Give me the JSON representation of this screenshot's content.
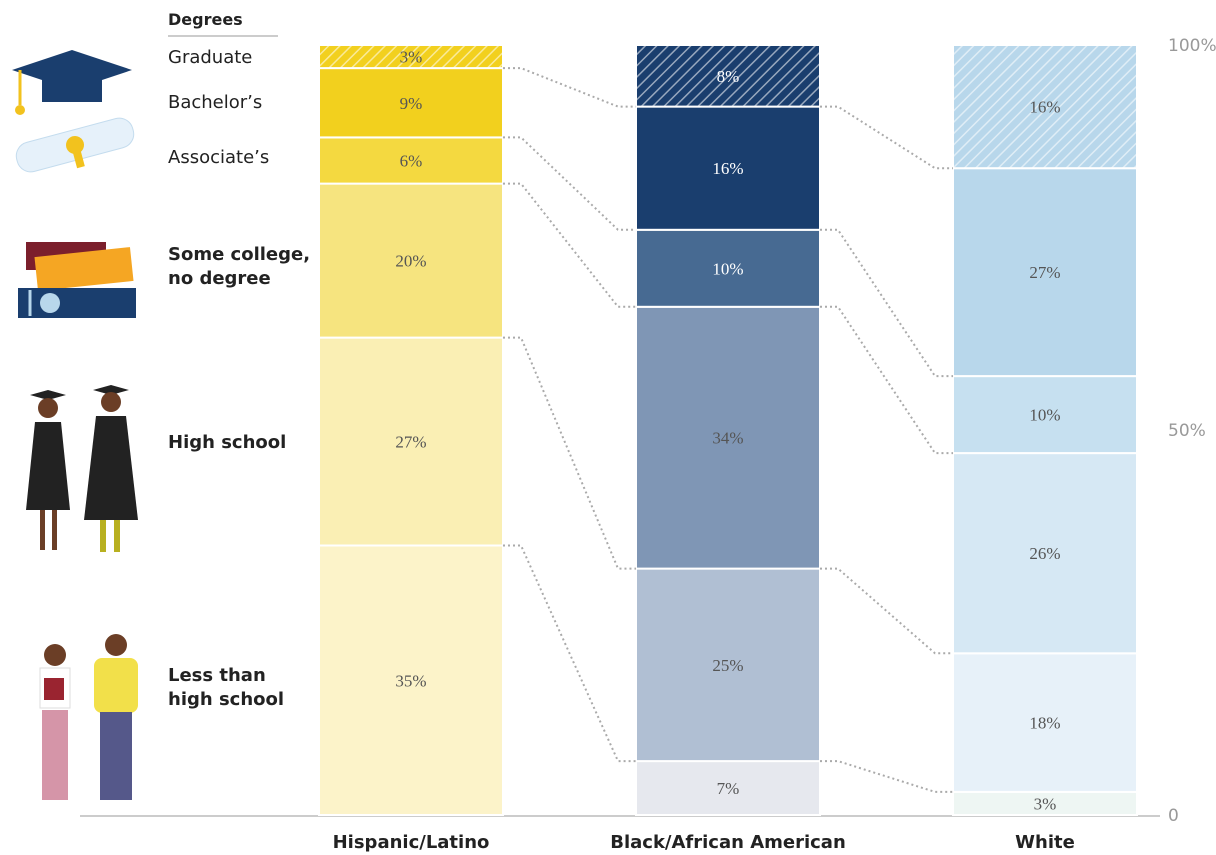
{
  "chart_data": {
    "type": "stacked-bar",
    "legend_title": "Degrees",
    "categories": [
      "Hispanic/Latino",
      "Black/African American",
      "White"
    ],
    "ylim": [
      0,
      100
    ],
    "yticks": [
      0,
      {
        "value": 50,
        "label": "50%"
      },
      {
        "value": 100,
        "label": "100%"
      }
    ],
    "series": [
      {
        "name": "Less than high school",
        "colors": [
          "#fcf3c9",
          "#e6e8ee",
          "#eef6f3"
        ],
        "values": [
          35,
          7,
          3
        ],
        "value_labels": [
          "35%",
          "7%",
          "3%"
        ]
      },
      {
        "name": "High school",
        "colors": [
          "#faefb4",
          "#b0bfd3",
          "#e7f1f9"
        ],
        "values": [
          27,
          25,
          18
        ],
        "value_labels": [
          "27%",
          "25%",
          "18%"
        ]
      },
      {
        "name": "Some college,\nno degree",
        "colors": [
          "#f6e47f",
          "#7f96b5",
          "#d6e8f4"
        ],
        "values": [
          20,
          34,
          26
        ],
        "value_labels": [
          "20%",
          "34%",
          "26%"
        ]
      },
      {
        "name": "Associate’s",
        "colors": [
          "#f4d940",
          "#476a92",
          "#c6e0f0"
        ],
        "values": [
          6,
          10,
          10
        ],
        "value_labels": [
          "6%",
          "10%",
          "10%"
        ]
      },
      {
        "name": "Bachelor’s",
        "colors": [
          "#f2d01e",
          "#1a3e6e",
          "#b8d7eb"
        ],
        "values": [
          9,
          16,
          27
        ],
        "value_labels": [
          "9%",
          "16%",
          "27%"
        ]
      },
      {
        "name": "Graduate",
        "hatch": true,
        "colors": [
          "#f2d01e",
          "#1a3e6e",
          "#b8d7eb"
        ],
        "values": [
          3,
          8,
          16
        ],
        "value_labels": [
          "3%",
          "8%",
          "16%"
        ]
      }
    ]
  }
}
